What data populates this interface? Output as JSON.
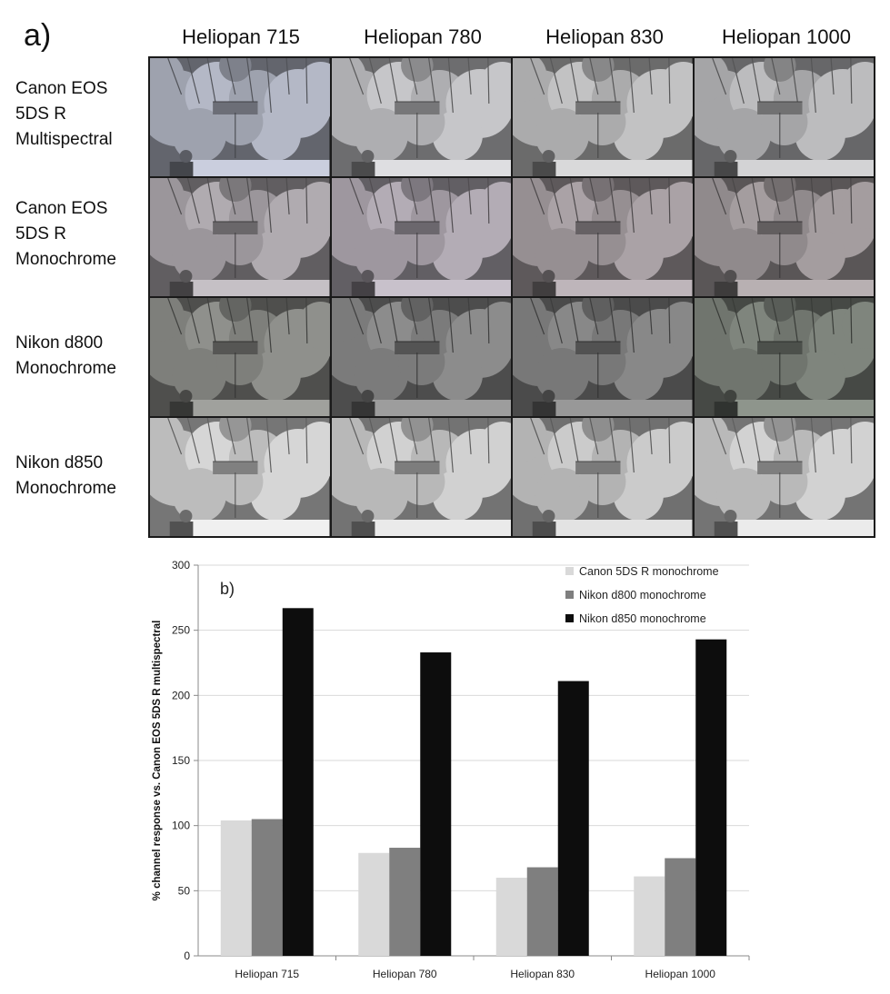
{
  "panel_a": {
    "label": "a)",
    "columns": [
      "Heliopan 715",
      "Heliopan 780",
      "Heliopan 830",
      "Heliopan 1000"
    ],
    "rows": [
      {
        "lines": [
          "Canon EOS",
          "5DS R",
          "Multispectral"
        ]
      },
      {
        "lines": [
          "Canon EOS",
          "5DS R",
          "Monochrome"
        ]
      },
      {
        "lines": [
          "Nikon d800",
          "Monochrome"
        ]
      },
      {
        "lines": [
          "Nikon d850",
          "Monochrome"
        ]
      }
    ],
    "tones": [
      [
        "#b4b8c6",
        "#c6c6c9",
        "#c2c2c3",
        "#bcbcbe"
      ],
      [
        "#b0abb0",
        "#b3acb5",
        "#aaa2a6",
        "#a49d9f"
      ],
      [
        "#8f908c",
        "#8c8c8c",
        "#888888",
        "#7f857d"
      ],
      [
        "#d6d6d6",
        "#d1d1d1",
        "#cbcbcb",
        "#d2d2d2"
      ]
    ]
  },
  "chart_data": {
    "type": "bar",
    "panel_label": "b)",
    "categories": [
      "Heliopan 715",
      "Heliopan 780",
      "Heliopan 830",
      "Heliopan 1000"
    ],
    "series": [
      {
        "name": "Canon 5DS R monochrome",
        "color": "#d9d9d9",
        "values": [
          104,
          79,
          60,
          61
        ]
      },
      {
        "name": "Nikon d800 monochrome",
        "color": "#7f7f7f",
        "values": [
          105,
          83,
          68,
          75
        ]
      },
      {
        "name": "Nikon d850 monochrome",
        "color": "#0d0d0d",
        "values": [
          267,
          233,
          211,
          243
        ]
      }
    ],
    "ylabel": "% channel response vs. Canon EOS 5DS R multispectral",
    "ylim": [
      0,
      300
    ],
    "yticks": [
      0,
      50,
      100,
      150,
      200,
      250,
      300
    ],
    "grid": true,
    "legend_position": "top-right"
  }
}
